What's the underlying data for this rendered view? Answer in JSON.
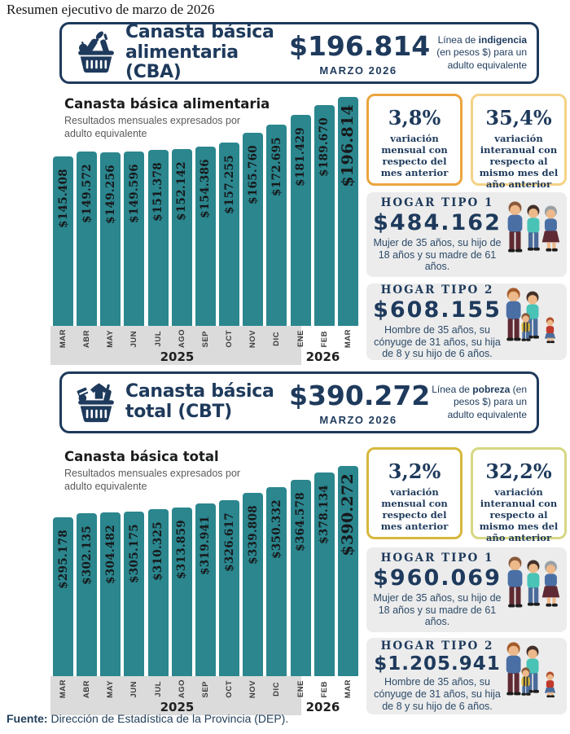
{
  "page": {
    "title": "Resumen ejecutivo de marzo de 2026",
    "footer": {
      "label": "Fuente:",
      "text": "Dirección de Estadística de la Provincia (DEP)."
    },
    "colors": {
      "accent_navy": "#1e3a5c",
      "bar_teal": "#2b868e",
      "axis_band_gray": "#dbdbdb",
      "household_bg": "#ececec"
    }
  },
  "sections": [
    {
      "id": "cba",
      "header": {
        "title_line1": "Canasta básica",
        "title_line2": "alimentaria (CBA)",
        "amount": "$196.814",
        "period": "MARZO 2026",
        "note_pre": "Línea de ",
        "note_bold": "indigencia",
        "note_post": " (en pesos $) para un adulto equivalente"
      },
      "stats": [
        {
          "value": "3,8%",
          "desc": "variación mensual con respecto del mes anterior",
          "border": "#eca43f"
        },
        {
          "value": "35,4%",
          "desc": "variación interanual con respecto al mismo mes del año anterior",
          "border": "#f4d286"
        }
      ],
      "households": [
        {
          "title": "HOGAR TIPO 1",
          "amount": "$484.162",
          "desc": "Mujer de 35 años, su hijo de 18 años y su madre de 61 años."
        },
        {
          "title": "HOGAR TIPO 2",
          "amount": "$608.155",
          "desc": "Hombre de 35 años, su cónyuge de 31 años, su hija de 8 y su hijo de 6 años."
        }
      ]
    },
    {
      "id": "cbt",
      "header": {
        "title_line1": "Canasta básica",
        "title_line2": "total (CBT)",
        "amount": "$390.272",
        "period": "MARZO 2026",
        "note_pre": "Línea de ",
        "note_bold": "pobreza",
        "note_post": " (en pesos $) para un adulto equivalente"
      },
      "stats": [
        {
          "value": "3,2%",
          "desc": "variación mensual con respecto del mes anterior",
          "border": "#d7b83e"
        },
        {
          "value": "32,2%",
          "desc": "variación interanual con respecto al mismo mes del año anterior",
          "border": "#d6d783"
        }
      ],
      "households": [
        {
          "title": "HOGAR TIPO 1",
          "amount": "$960.069",
          "desc": "Mujer de 35 años, su hijo de 18 años y su madre de 61 años."
        },
        {
          "title": "HOGAR TIPO 2",
          "amount": "$1.205.941",
          "desc": "Hombre de 35 años, su cónyuge de 31 años, su hija de 8 y su hijo de 6 años."
        }
      ]
    }
  ],
  "chart_data": [
    {
      "type": "bar",
      "title": "Canasta básica alimentaria",
      "subtitle": "Resultados mensuales expresados por adulto equivalente",
      "categories": [
        "MAR",
        "ABR",
        "MAY",
        "JUN",
        "JUL",
        "AGO",
        "SEP",
        "OCT",
        "NOV",
        "DIC",
        "ENE",
        "FEB",
        "MAR"
      ],
      "values": [
        145408,
        149572,
        149256,
        149596,
        151378,
        152142,
        154386,
        157255,
        165760,
        172695,
        181429,
        189670,
        196814
      ],
      "labels": [
        "$145.408",
        "$149.572",
        "$149.256",
        "$149.596",
        "$151.378",
        "$152.142",
        "$154.386",
        "$157.255",
        "$165.760",
        "$172.695",
        "$181.429",
        "$189.670",
        "$196.814"
      ],
      "year_groups": [
        {
          "label": "2025",
          "categories": "MAR–DIC"
        },
        {
          "label": "2026",
          "categories": "ENE–MAR"
        }
      ],
      "bar_color": "#2b868e",
      "ylim": [
        0,
        196814
      ],
      "grid": false,
      "legend": "none",
      "xlabel": "",
      "ylabel": ""
    },
    {
      "type": "bar",
      "title": "Canasta básica total",
      "subtitle": "Resultados mensuales expresados por adulto equivalente",
      "categories": [
        "MAR",
        "ABR",
        "MAY",
        "JUN",
        "JUL",
        "AGO",
        "SEP",
        "OCT",
        "NOV",
        "DIC",
        "ENE",
        "FEB",
        "MAR"
      ],
      "values": [
        295178,
        302135,
        304482,
        305175,
        310325,
        313859,
        319941,
        326617,
        339808,
        350332,
        364578,
        378134,
        390272
      ],
      "labels": [
        "$295.178",
        "$302.135",
        "$304.482",
        "$305.175",
        "$310.325",
        "$313.859",
        "$319.941",
        "$326.617",
        "$339.808",
        "$350.332",
        "$364.578",
        "$378.134",
        "$390.272"
      ],
      "year_groups": [
        {
          "label": "2025",
          "categories": "MAR–DIC"
        },
        {
          "label": "2026",
          "categories": "ENE–MAR"
        }
      ],
      "bar_color": "#2b868e",
      "ylim": [
        0,
        390272
      ],
      "grid": false,
      "legend": "none",
      "xlabel": "",
      "ylabel": ""
    }
  ]
}
